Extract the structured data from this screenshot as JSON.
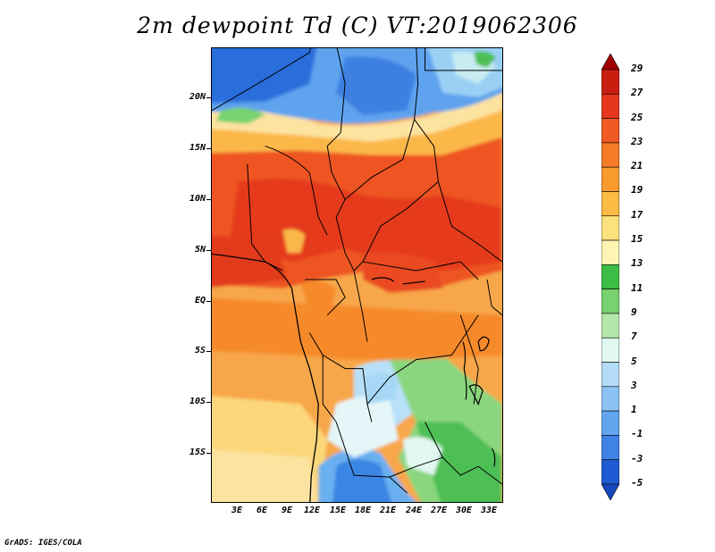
{
  "title": "2m dewpoint Td (C) VT:2019062306",
  "credit": "GrADS: IGES/COLA",
  "map": {
    "region": "Central/West Africa",
    "lat_labels": [
      "20N",
      "15N",
      "10N",
      "5N",
      "EQ",
      "5S",
      "10S",
      "15S"
    ],
    "lon_labels": [
      "3E",
      "6E",
      "9E",
      "12E",
      "15E",
      "18E",
      "21E",
      "24E",
      "27E",
      "30E",
      "33E"
    ]
  },
  "colorbar": {
    "labels": [
      "29",
      "27",
      "25",
      "23",
      "21",
      "19",
      "17",
      "15",
      "13",
      "11",
      "9",
      "7",
      "5",
      "3",
      "1",
      "-1",
      "-3",
      "-5"
    ],
    "colors": [
      "#a00000",
      "#c81e0f",
      "#e6371e",
      "#f05a23",
      "#f57b26",
      "#f99a2f",
      "#fbbc45",
      "#fde17c",
      "#fff4b2",
      "#3cbe46",
      "#78d26e",
      "#b4e8aa",
      "#e1f8f0",
      "#b4dcf8",
      "#8cc3f5",
      "#64a5f0",
      "#4082e6",
      "#1e5ad2",
      "#1446be"
    ],
    "units": "C"
  }
}
